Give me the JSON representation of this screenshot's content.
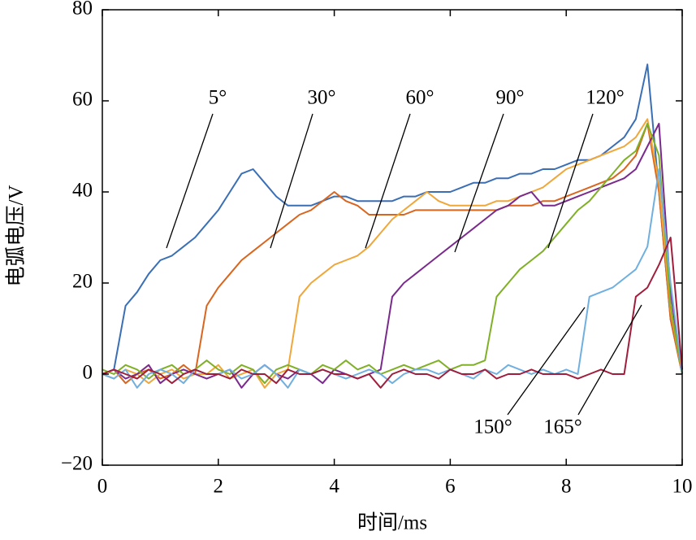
{
  "chart_data": {
    "type": "line",
    "x_label": "时间/ms",
    "y_label": "电弧电压/V",
    "xlim": [
      0,
      10
    ],
    "xticks": [
      0,
      2,
      4,
      6,
      8,
      10
    ],
    "ylim": [
      -20,
      80
    ],
    "yticks": [
      {
        "value": -20,
        "label": "−20"
      },
      0,
      20,
      40,
      60,
      80
    ],
    "grid": false,
    "x": [
      0,
      0.2,
      0.4,
      0.6,
      0.8,
      1,
      1.2,
      1.4,
      1.6,
      1.8,
      2,
      2.2,
      2.4,
      2.6,
      2.8,
      3,
      3.2,
      3.4,
      3.6,
      3.8,
      4,
      4.2,
      4.4,
      4.6,
      4.8,
      5,
      5.2,
      5.4,
      5.6,
      5.8,
      6,
      6.2,
      6.4,
      6.6,
      6.8,
      7,
      7.2,
      7.4,
      7.6,
      7.8,
      8,
      8.2,
      8.4,
      8.6,
      8.8,
      9,
      9.2,
      9.4,
      9.6,
      9.8,
      10
    ],
    "series": [
      {
        "name": "5°",
        "color": "#3a6fb5",
        "values": [
          0,
          1,
          15,
          18,
          22,
          25,
          26,
          28,
          30,
          33,
          36,
          40,
          44,
          45,
          42,
          39,
          37,
          37,
          37,
          38,
          39,
          39,
          38,
          38,
          38,
          38,
          39,
          39,
          40,
          40,
          40,
          41,
          42,
          42,
          43,
          43,
          44,
          44,
          45,
          45,
          46,
          47,
          47,
          48,
          50,
          52,
          56,
          68,
          40,
          12,
          0
        ]
      },
      {
        "name": "30°",
        "color": "#d9651e",
        "values": [
          0,
          1,
          -2,
          0,
          1,
          -1,
          0,
          2,
          0,
          15,
          19,
          22,
          25,
          27,
          29,
          31,
          33,
          35,
          36,
          38,
          40,
          38,
          37,
          35,
          35,
          35,
          35,
          36,
          36,
          36,
          36,
          36,
          36,
          36,
          36,
          37,
          37,
          37,
          38,
          38,
          39,
          40,
          41,
          42,
          43,
          45,
          48,
          55,
          40,
          12,
          0
        ]
      },
      {
        "name": "60°",
        "color": "#f0a73a",
        "values": [
          0,
          -1,
          1,
          0,
          -2,
          0,
          1,
          -1,
          0,
          0,
          2,
          -1,
          0,
          1,
          -3,
          0,
          1,
          17,
          20,
          22,
          24,
          25,
          26,
          28,
          31,
          34,
          36,
          38,
          40,
          38,
          37,
          37,
          37,
          37,
          38,
          38,
          39,
          40,
          41,
          43,
          45,
          46,
          47,
          48,
          49,
          50,
          52,
          56,
          42,
          14,
          0
        ]
      },
      {
        "name": "90°",
        "color": "#7a2a8c",
        "values": [
          0,
          1,
          -1,
          0,
          2,
          -2,
          0,
          1,
          0,
          -1,
          0,
          1,
          -3,
          0,
          2,
          0,
          -1,
          1,
          0,
          -2,
          1,
          0,
          -1,
          0,
          1,
          17,
          20,
          22,
          24,
          26,
          28,
          30,
          32,
          34,
          36,
          37,
          39,
          40,
          37,
          37,
          38,
          39,
          40,
          41,
          42,
          43,
          45,
          50,
          55,
          18,
          0
        ]
      },
      {
        "name": "120°",
        "color": "#7fb026",
        "values": [
          1,
          0,
          2,
          1,
          -1,
          1,
          2,
          0,
          1,
          3,
          1,
          0,
          2,
          1,
          -2,
          1,
          2,
          1,
          0,
          2,
          1,
          3,
          1,
          2,
          0,
          1,
          2,
          1,
          2,
          3,
          1,
          2,
          2,
          3,
          17,
          20,
          23,
          25,
          27,
          30,
          33,
          36,
          38,
          41,
          44,
          47,
          49,
          55,
          48,
          15,
          0
        ]
      },
      {
        "name": "150°",
        "color": "#6fb0e0",
        "values": [
          0,
          -1,
          1,
          -3,
          0,
          1,
          0,
          -2,
          1,
          0,
          0,
          1,
          -1,
          0,
          2,
          0,
          -3,
          1,
          0,
          1,
          0,
          -1,
          0,
          1,
          0,
          -2,
          0,
          1,
          1,
          0,
          1,
          0,
          -1,
          1,
          0,
          2,
          1,
          0,
          1,
          0,
          1,
          0,
          17,
          18,
          19,
          21,
          23,
          28,
          45,
          20,
          0
        ]
      },
      {
        "name": "165°",
        "color": "#a01e3c",
        "values": [
          0,
          1,
          0,
          -1,
          1,
          0,
          -2,
          0,
          1,
          0,
          0,
          -1,
          1,
          0,
          0,
          -2,
          1,
          0,
          0,
          1,
          0,
          0,
          -1,
          0,
          -3,
          0,
          1,
          0,
          0,
          -1,
          1,
          0,
          0,
          1,
          -1,
          0,
          0,
          1,
          0,
          0,
          0,
          -1,
          0,
          1,
          0,
          0,
          17,
          19,
          24,
          30,
          1
        ]
      }
    ]
  }
}
